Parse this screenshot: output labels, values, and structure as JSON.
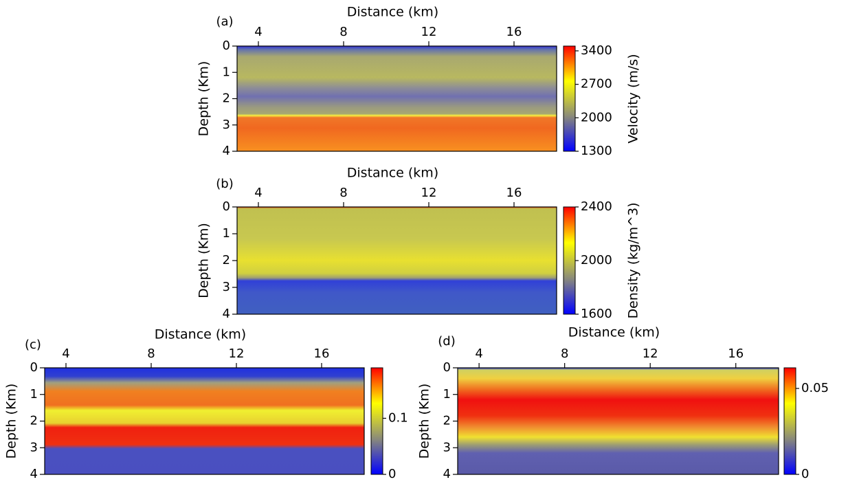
{
  "chart_data": [
    {
      "type": "heatmap",
      "panel_label": "(a)",
      "xlabel": "Distance (km)",
      "ylabel": "Depth (Km)",
      "colorbar_label": "Velocity (m/s)",
      "xlim": [
        3,
        18
      ],
      "xticks": [
        4,
        8,
        12,
        16
      ],
      "ylim": [
        0,
        4
      ],
      "yticks": [
        0,
        1,
        2,
        3,
        4
      ],
      "clim": [
        1300,
        3500
      ],
      "cticks": [
        1300,
        2000,
        2700,
        3400
      ],
      "colormap": [
        "#0000ff",
        "#8a8a7a",
        "#ffff00",
        "#ff0000"
      ]
    },
    {
      "type": "heatmap",
      "panel_label": "(b)",
      "xlabel": "Distance (km)",
      "ylabel": "Depth (Km)",
      "colorbar_label": "Density (kg/m^3)",
      "xlim": [
        3,
        18
      ],
      "xticks": [
        4,
        8,
        12,
        16
      ],
      "ylim": [
        0,
        4
      ],
      "yticks": [
        0,
        1,
        2,
        3,
        4
      ],
      "clim": [
        1600,
        2400
      ],
      "cticks": [
        1600,
        2000,
        2400
      ],
      "colormap": [
        "#0000ff",
        "#8a8a7a",
        "#ffff00",
        "#ff0000"
      ]
    },
    {
      "type": "heatmap",
      "panel_label": "(c)",
      "xlabel": "Distance (km)",
      "ylabel": "Depth (Km)",
      "xlim": [
        3,
        18
      ],
      "xticks": [
        4,
        8,
        12,
        16
      ],
      "ylim": [
        0,
        4
      ],
      "yticks": [
        0,
        1,
        2,
        3,
        4
      ],
      "clim": [
        0,
        0.19
      ],
      "cticks": [
        0,
        0.1
      ],
      "colormap": [
        "#0000ff",
        "#8a8a7a",
        "#ffff00",
        "#ff0000"
      ]
    },
    {
      "type": "heatmap",
      "panel_label": "(d)",
      "xlabel": "Distance (km)",
      "ylabel": "Depth (Km)",
      "xlim": [
        3,
        18
      ],
      "xticks": [
        4,
        8,
        12,
        16
      ],
      "ylim": [
        0,
        4
      ],
      "yticks": [
        0,
        1,
        2,
        3,
        4
      ],
      "clim": [
        0,
        0.062
      ],
      "cticks": [
        0,
        0.05
      ],
      "colormap": [
        "#0000ff",
        "#8a8a7a",
        "#ffff00",
        "#ff0000"
      ]
    }
  ]
}
